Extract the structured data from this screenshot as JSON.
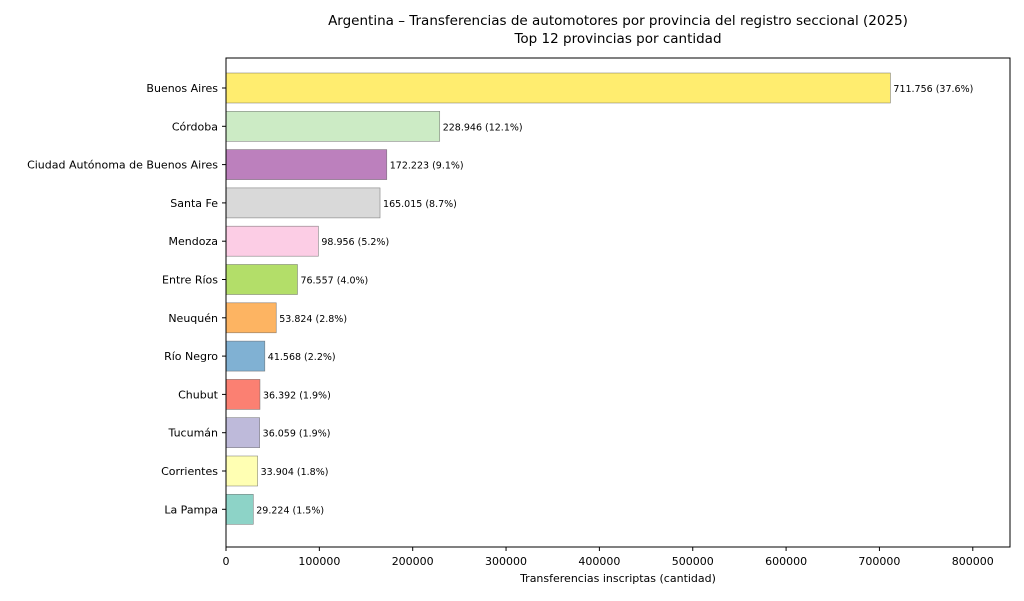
{
  "chart_data": {
    "type": "bar",
    "orientation": "horizontal",
    "title": "Argentina – Transferencias de automotores por provincia del registro seccional (2025)",
    "subtitle": "Top 12 provincias por cantidad",
    "xlabel": "Transferencias inscriptas (cantidad)",
    "ylabel": "",
    "xlim": [
      0,
      839872
    ],
    "xticks": [
      0,
      100000,
      200000,
      300000,
      400000,
      500000,
      600000,
      700000,
      800000
    ],
    "xtick_labels": [
      "0",
      "100000",
      "200000",
      "300000",
      "400000",
      "500000",
      "600000",
      "700000",
      "800000"
    ],
    "grid": false,
    "categories": [
      "Buenos Aires",
      "Córdoba",
      "Ciudad Autónoma de Buenos Aires",
      "Santa Fe",
      "Mendoza",
      "Entre Ríos",
      "Neuquén",
      "Río Negro",
      "Chubut",
      "Tucumán",
      "Corrientes",
      "La Pampa"
    ],
    "values": [
      711756,
      228946,
      172223,
      165015,
      98956,
      76557,
      53824,
      41568,
      36392,
      36059,
      33904,
      29224
    ],
    "data_labels": [
      "711.756 (37.6%)",
      "228.946 (12.1%)",
      "172.223 (9.1%)",
      "165.015 (8.7%)",
      "98.956 (5.2%)",
      "76.557 (4.0%)",
      "53.824 (2.8%)",
      "41.568 (2.2%)",
      "36.392 (1.9%)",
      "36.059 (1.9%)",
      "33.904 (1.8%)",
      "29.224 (1.5%)"
    ],
    "colors": [
      "#ffed6f",
      "#ccebc5",
      "#bc80bd",
      "#d9d9d9",
      "#fccde5",
      "#b3de69",
      "#fdb462",
      "#80b1d3",
      "#fb8072",
      "#bebada",
      "#ffffb3",
      "#8dd3c7"
    ]
  }
}
